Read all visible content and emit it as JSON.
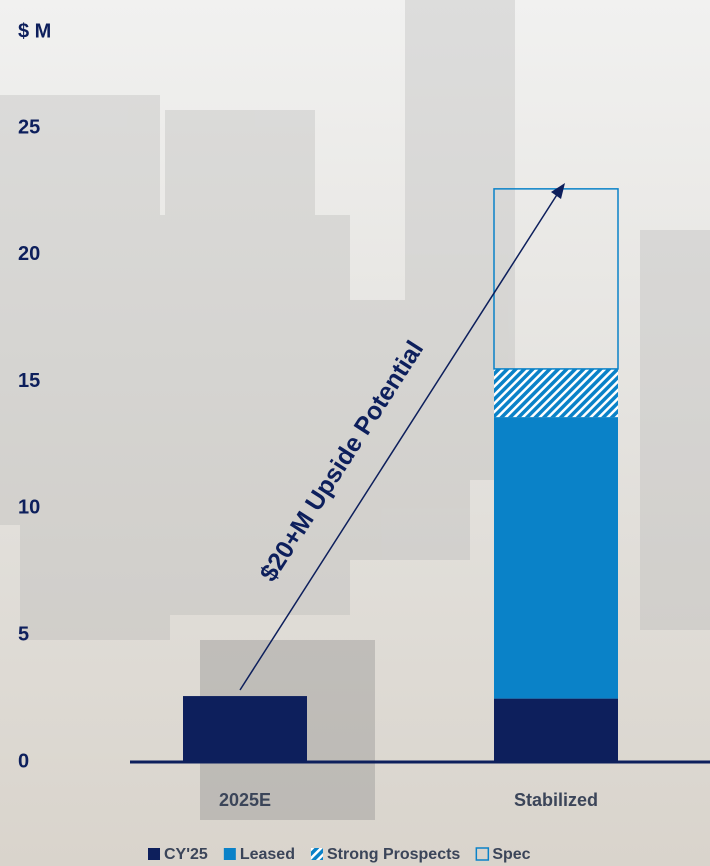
{
  "chart_data": {
    "type": "stacked_bar",
    "y_label": "$ M",
    "categories": [
      "2025E",
      "Stabilized"
    ],
    "series": [
      {
        "name": "CY'25",
        "color": "#0d1f5c",
        "style": "solid",
        "values": [
          2.6,
          2.5
        ]
      },
      {
        "name": "Leased",
        "color": "#0a82c8",
        "style": "solid",
        "values": [
          null,
          11.1
        ]
      },
      {
        "name": "Strong Prospects",
        "color": "#0a82c8",
        "style": "hatch",
        "values": [
          null,
          1.9
        ]
      },
      {
        "name": "Spec",
        "color": "#0a82c8",
        "style": "outline",
        "values": [
          null,
          7.1
        ]
      }
    ],
    "ylim": [
      0,
      25
    ],
    "yticks": [
      0,
      5,
      10,
      15,
      20,
      25
    ],
    "annotation": "$20+M Upside Potential"
  }
}
